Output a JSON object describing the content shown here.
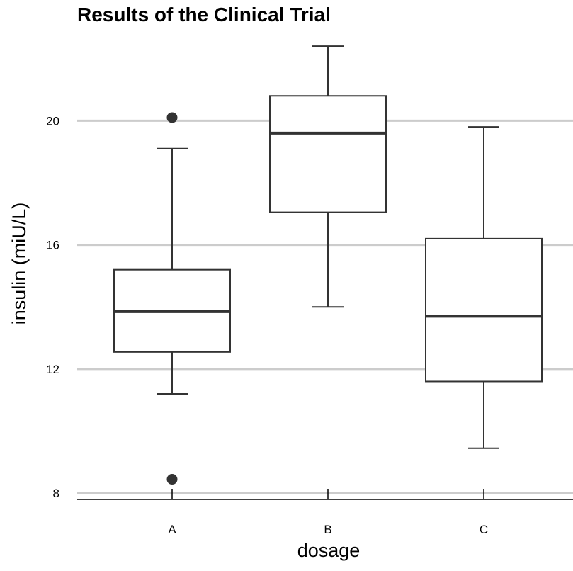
{
  "chart_data": {
    "type": "box",
    "title": "Results of the Clinical Trial",
    "xlabel": "dosage",
    "ylabel": "insulin (miU/L)",
    "categories": [
      "A",
      "B",
      "C"
    ],
    "y_ticks": [
      "8",
      "12",
      "16",
      "20"
    ],
    "ylim": [
      7.8,
      22.7
    ],
    "grid": "horizontal major",
    "boxes": [
      {
        "category": "A",
        "whisker_low": 11.2,
        "q1": 12.55,
        "median": 13.85,
        "q3": 15.2,
        "whisker_high": 19.1,
        "outliers": [
          8.45,
          20.1
        ]
      },
      {
        "category": "B",
        "whisker_low": 14.0,
        "q1": 17.05,
        "median": 19.6,
        "q3": 20.8,
        "whisker_high": 22.4,
        "outliers": []
      },
      {
        "category": "C",
        "whisker_low": 9.45,
        "q1": 11.6,
        "median": 13.7,
        "q3": 16.2,
        "whisker_high": 19.8,
        "outliers": []
      }
    ],
    "colors": {
      "grid": "#cccccc",
      "box_stroke": "#333333",
      "outlier": "#333333",
      "axis": "#000000"
    }
  }
}
